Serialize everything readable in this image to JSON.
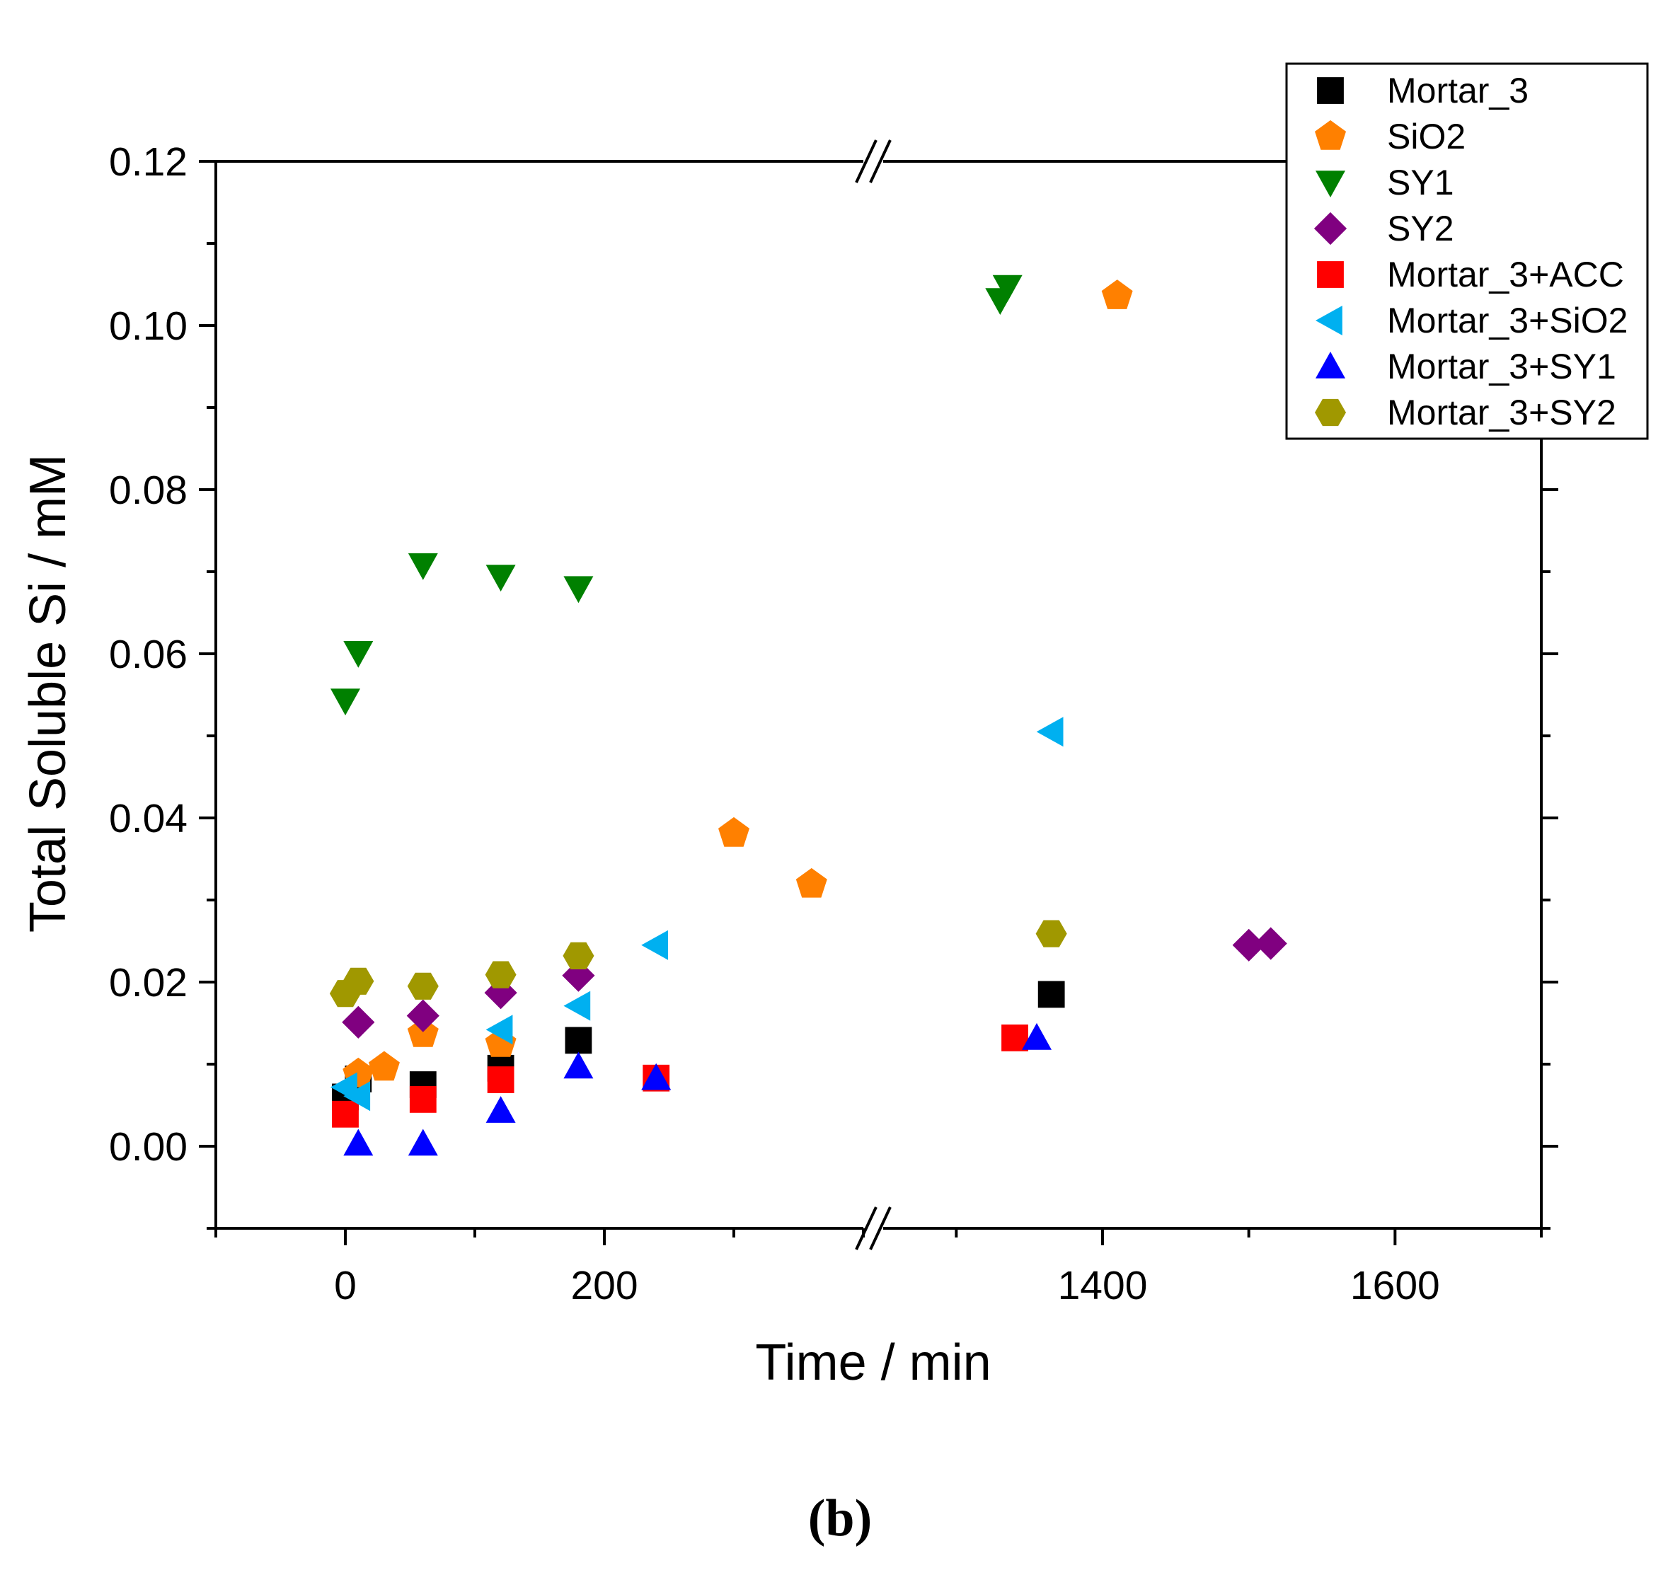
{
  "chart_data": {
    "type": "scatter",
    "xlabel": "Time / min",
    "ylabel": "Total Soluble Si / mM",
    "panel_label": "(b)",
    "x_axis_broken": true,
    "x_segments": [
      {
        "range": [
          -100,
          400
        ],
        "ticks": [
          0,
          200
        ],
        "minor_step": 100
      },
      {
        "range": [
          1250,
          1700
        ],
        "ticks": [
          1400,
          1600
        ],
        "minor_step": 100
      }
    ],
    "ylim": [
      -0.01,
      0.12
    ],
    "yticks": [
      "0.00",
      "0.02",
      "0.04",
      "0.06",
      "0.08",
      "0.10",
      "0.12"
    ],
    "y_minor_step": 0.01,
    "legend_position": "top-right",
    "series": [
      {
        "name": "Mortar_3",
        "marker": "square",
        "color": "#000000",
        "points": [
          [
            0,
            0.006
          ],
          [
            10,
            0.0082
          ],
          [
            60,
            0.0075
          ],
          [
            120,
            0.0095
          ],
          [
            180,
            0.0129
          ],
          [
            1365,
            0.0185
          ]
        ]
      },
      {
        "name": "SiO2",
        "marker": "pentagon",
        "color": "#ff8000",
        "points": [
          [
            10,
            0.0088
          ],
          [
            30,
            0.0096
          ],
          [
            60,
            0.0137
          ],
          [
            120,
            0.0125
          ],
          [
            300,
            0.0381
          ],
          [
            360,
            0.0319
          ],
          [
            1410,
            0.1036
          ]
        ]
      },
      {
        "name": "SY1",
        "marker": "triangle-down",
        "color": "#008000",
        "points": [
          [
            0,
            0.0543
          ],
          [
            10,
            0.0601
          ],
          [
            60,
            0.0708
          ],
          [
            120,
            0.0694
          ],
          [
            180,
            0.068
          ],
          [
            1330,
            0.1031
          ],
          [
            1335,
            0.1047
          ]
        ]
      },
      {
        "name": "SY2",
        "marker": "diamond",
        "color": "#800080",
        "points": [
          [
            10,
            0.0151
          ],
          [
            60,
            0.0159
          ],
          [
            120,
            0.0187
          ],
          [
            180,
            0.0208
          ],
          [
            1500,
            0.0245
          ],
          [
            1515,
            0.0247
          ]
        ]
      },
      {
        "name": "Mortar_3+ACC",
        "marker": "square",
        "color": "#ff0000",
        "points": [
          [
            0,
            0.0039
          ],
          [
            60,
            0.0057
          ],
          [
            120,
            0.0081
          ],
          [
            240,
            0.0083
          ],
          [
            1340,
            0.0132
          ]
        ]
      },
      {
        "name": "Mortar_3+SiO2",
        "marker": "triangle-left",
        "color": "#00b0f0",
        "points": [
          [
            0,
            0.0072
          ],
          [
            10,
            0.0061
          ],
          [
            120,
            0.0142
          ],
          [
            180,
            0.0171
          ],
          [
            240,
            0.0245
          ],
          [
            1365,
            0.0505
          ]
        ]
      },
      {
        "name": "Mortar_3+SY1",
        "marker": "triangle-up",
        "color": "#0000ff",
        "points": [
          [
            10,
            0.0003
          ],
          [
            60,
            0.0003
          ],
          [
            120,
            0.0043
          ],
          [
            180,
            0.0097
          ],
          [
            240,
            0.0083
          ],
          [
            1355,
            0.0132
          ]
        ]
      },
      {
        "name": "Mortar_3+SY2",
        "marker": "hexagon",
        "color": "#a09800",
        "points": [
          [
            0,
            0.0186
          ],
          [
            10,
            0.0201
          ],
          [
            60,
            0.0195
          ],
          [
            120,
            0.0209
          ],
          [
            180,
            0.0232
          ],
          [
            1365,
            0.0259
          ]
        ]
      }
    ]
  }
}
